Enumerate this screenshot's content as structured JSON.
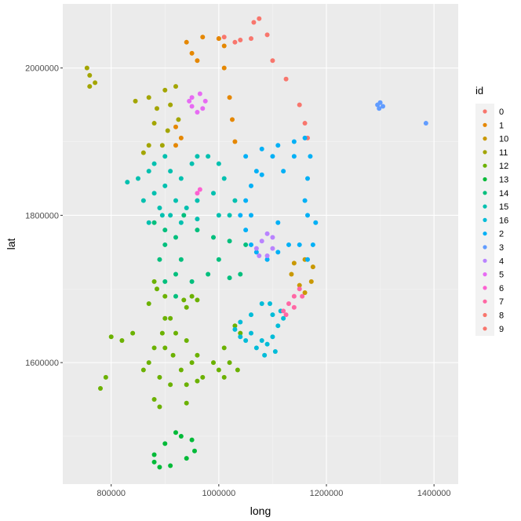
{
  "chart_data": {
    "type": "scatter",
    "xlabel": "long",
    "ylabel": "lat",
    "xlim": [
      710000,
      1445000
    ],
    "ylim": [
      1435000,
      2087000
    ],
    "x_ticks": [
      800000,
      1000000,
      1200000,
      1400000
    ],
    "x_tick_labels": [
      "800000",
      "1000000",
      "1200000",
      "1400000"
    ],
    "y_ticks": [
      1600000,
      1800000,
      2000000
    ],
    "y_tick_labels": [
      "1600000",
      "1800000",
      "2000000"
    ],
    "grid": true,
    "legend": {
      "title": "id",
      "position": "right",
      "entries": [
        {
          "label": "0",
          "color": "#F8766D"
        },
        {
          "label": "1",
          "color": "#E58700"
        },
        {
          "label": "10",
          "color": "#C99800"
        },
        {
          "label": "11",
          "color": "#A3A500"
        },
        {
          "label": "12",
          "color": "#6BB100"
        },
        {
          "label": "13",
          "color": "#00BA38"
        },
        {
          "label": "14",
          "color": "#00BF7D"
        },
        {
          "label": "15",
          "color": "#00C0AF"
        },
        {
          "label": "16",
          "color": "#00BCD8"
        },
        {
          "label": "2",
          "color": "#00B0F6"
        },
        {
          "label": "3",
          "color": "#619CFF"
        },
        {
          "label": "4",
          "color": "#B983FF"
        },
        {
          "label": "5",
          "color": "#E76BF3"
        },
        {
          "label": "6",
          "color": "#FD61D1"
        },
        {
          "label": "7",
          "color": "#FF67A4"
        },
        {
          "label": "8",
          "color": "#F8766D"
        },
        {
          "label": "9",
          "color": "#F8766D"
        }
      ]
    },
    "series": [
      {
        "id": "0",
        "color": "#F8766D",
        "points": [
          [
            1000000,
            2040000
          ],
          [
            1030000,
            2035000
          ],
          [
            1060000,
            2040000
          ],
          [
            1075000,
            2067000
          ],
          [
            1090000,
            2045000
          ],
          [
            1100000,
            2010000
          ],
          [
            1125000,
            1985000
          ],
          [
            1150000,
            1950000
          ],
          [
            1160000,
            1925000
          ],
          [
            1165000,
            1905000
          ],
          [
            1065000,
            2062000
          ],
          [
            1040000,
            2038000
          ],
          [
            1010000,
            2042000
          ]
        ]
      },
      {
        "id": "1",
        "color": "#E58700",
        "points": [
          [
            940000,
            2035000
          ],
          [
            970000,
            2042000
          ],
          [
            1000000,
            2040000
          ],
          [
            1010000,
            2000000
          ],
          [
            1020000,
            1960000
          ],
          [
            1025000,
            1930000
          ],
          [
            920000,
            1920000
          ],
          [
            930000,
            1905000
          ],
          [
            920000,
            1895000
          ],
          [
            960000,
            2010000
          ],
          [
            950000,
            2020000
          ],
          [
            1010000,
            2030000
          ],
          [
            1030000,
            1900000
          ]
        ]
      },
      {
        "id": "10",
        "color": "#C99800",
        "points": [
          [
            1140000,
            1735000
          ],
          [
            1160000,
            1740000
          ],
          [
            1175000,
            1730000
          ],
          [
            1172000,
            1710000
          ],
          [
            1160000,
            1695000
          ],
          [
            1150000,
            1705000
          ],
          [
            1135000,
            1720000
          ]
        ]
      },
      {
        "id": "11",
        "color": "#A3A500",
        "points": [
          [
            755000,
            2000000
          ],
          [
            760000,
            1990000
          ],
          [
            760000,
            1975000
          ],
          [
            770000,
            1980000
          ],
          [
            900000,
            1970000
          ],
          [
            920000,
            1975000
          ],
          [
            910000,
            1950000
          ],
          [
            925000,
            1930000
          ],
          [
            905000,
            1915000
          ],
          [
            880000,
            1925000
          ],
          [
            895000,
            1895000
          ],
          [
            860000,
            1885000
          ],
          [
            870000,
            1895000
          ],
          [
            845000,
            1955000
          ],
          [
            885000,
            1945000
          ],
          [
            870000,
            1960000
          ]
        ]
      },
      {
        "id": "12",
        "color": "#6BB100",
        "points": [
          [
            880000,
            1710000
          ],
          [
            900000,
            1690000
          ],
          [
            910000,
            1660000
          ],
          [
            895000,
            1640000
          ],
          [
            880000,
            1620000
          ],
          [
            870000,
            1600000
          ],
          [
            890000,
            1580000
          ],
          [
            910000,
            1570000
          ],
          [
            930000,
            1590000
          ],
          [
            950000,
            1600000
          ],
          [
            970000,
            1580000
          ],
          [
            990000,
            1600000
          ],
          [
            1010000,
            1620000
          ],
          [
            1030000,
            1650000
          ],
          [
            1040000,
            1640000
          ],
          [
            1020000,
            1600000
          ],
          [
            1000000,
            1590000
          ],
          [
            960000,
            1610000
          ],
          [
            940000,
            1630000
          ],
          [
            920000,
            1640000
          ],
          [
            900000,
            1620000
          ],
          [
            870000,
            1680000
          ],
          [
            885000,
            1700000
          ],
          [
            840000,
            1640000
          ],
          [
            820000,
            1630000
          ],
          [
            800000,
            1635000
          ],
          [
            790000,
            1580000
          ],
          [
            780000,
            1565000
          ],
          [
            860000,
            1590000
          ],
          [
            880000,
            1550000
          ],
          [
            890000,
            1540000
          ],
          [
            940000,
            1545000
          ],
          [
            960000,
            1575000
          ],
          [
            1010000,
            1580000
          ],
          [
            1035000,
            1590000
          ],
          [
            915000,
            1610000
          ],
          [
            940000,
            1570000
          ],
          [
            900000,
            1660000
          ],
          [
            950000,
            1690000
          ],
          [
            960000,
            1685000
          ],
          [
            940000,
            1675000
          ],
          [
            935000,
            1685000
          ]
        ]
      },
      {
        "id": "13",
        "color": "#00BA38",
        "points": [
          [
            880000,
            1465000
          ],
          [
            900000,
            1490000
          ],
          [
            930000,
            1500000
          ],
          [
            950000,
            1495000
          ],
          [
            955000,
            1480000
          ],
          [
            940000,
            1470000
          ],
          [
            910000,
            1460000
          ],
          [
            890000,
            1458000
          ],
          [
            880000,
            1475000
          ],
          [
            920000,
            1505000
          ]
        ]
      },
      {
        "id": "14",
        "color": "#00BF7D",
        "points": [
          [
            880000,
            1790000
          ],
          [
            900000,
            1780000
          ],
          [
            920000,
            1770000
          ],
          [
            930000,
            1740000
          ],
          [
            920000,
            1720000
          ],
          [
            900000,
            1710000
          ],
          [
            920000,
            1690000
          ],
          [
            950000,
            1710000
          ],
          [
            980000,
            1720000
          ],
          [
            1020000,
            1715000
          ],
          [
            1040000,
            1720000
          ],
          [
            1050000,
            1760000
          ],
          [
            1020000,
            1765000
          ],
          [
            990000,
            1770000
          ],
          [
            960000,
            1780000
          ],
          [
            935000,
            1800000
          ],
          [
            900000,
            1760000
          ],
          [
            890000,
            1740000
          ],
          [
            1000000,
            1740000
          ]
        ]
      },
      {
        "id": "15",
        "color": "#00C0AF",
        "points": [
          [
            880000,
            1870000
          ],
          [
            900000,
            1880000
          ],
          [
            910000,
            1860000
          ],
          [
            900000,
            1840000
          ],
          [
            880000,
            1830000
          ],
          [
            890000,
            1810000
          ],
          [
            910000,
            1800000
          ],
          [
            920000,
            1820000
          ],
          [
            930000,
            1850000
          ],
          [
            950000,
            1870000
          ],
          [
            960000,
            1880000
          ],
          [
            980000,
            1880000
          ],
          [
            1000000,
            1870000
          ],
          [
            1010000,
            1850000
          ],
          [
            990000,
            1830000
          ],
          [
            960000,
            1820000
          ],
          [
            940000,
            1810000
          ],
          [
            930000,
            1790000
          ],
          [
            960000,
            1795000
          ],
          [
            1000000,
            1800000
          ],
          [
            1020000,
            1800000
          ],
          [
            1030000,
            1820000
          ],
          [
            870000,
            1860000
          ],
          [
            860000,
            1820000
          ],
          [
            850000,
            1850000
          ],
          [
            830000,
            1845000
          ],
          [
            895000,
            1800000
          ],
          [
            870000,
            1790000
          ]
        ]
      },
      {
        "id": "16",
        "color": "#00BCD8",
        "points": [
          [
            1040000,
            1655000
          ],
          [
            1060000,
            1665000
          ],
          [
            1080000,
            1680000
          ],
          [
            1095000,
            1680000
          ],
          [
            1100000,
            1665000
          ],
          [
            1110000,
            1650000
          ],
          [
            1100000,
            1635000
          ],
          [
            1080000,
            1630000
          ],
          [
            1060000,
            1640000
          ],
          [
            1050000,
            1630000
          ],
          [
            1070000,
            1620000
          ],
          [
            1090000,
            1625000
          ],
          [
            1105000,
            1615000
          ],
          [
            1040000,
            1635000
          ],
          [
            1030000,
            1645000
          ],
          [
            1085000,
            1610000
          ],
          [
            1120000,
            1660000
          ],
          [
            1115000,
            1670000
          ]
        ]
      },
      {
        "id": "2",
        "color": "#00B0F6",
        "points": [
          [
            1050000,
            1880000
          ],
          [
            1080000,
            1890000
          ],
          [
            1110000,
            1895000
          ],
          [
            1140000,
            1900000
          ],
          [
            1160000,
            1905000
          ],
          [
            1170000,
            1880000
          ],
          [
            1165000,
            1850000
          ],
          [
            1160000,
            1820000
          ],
          [
            1165000,
            1800000
          ],
          [
            1180000,
            1790000
          ],
          [
            1175000,
            1760000
          ],
          [
            1165000,
            1740000
          ],
          [
            1150000,
            1760000
          ],
          [
            1130000,
            1760000
          ],
          [
            1110000,
            1750000
          ],
          [
            1090000,
            1740000
          ],
          [
            1070000,
            1750000
          ],
          [
            1060000,
            1760000
          ],
          [
            1050000,
            1780000
          ],
          [
            1040000,
            1800000
          ],
          [
            1050000,
            1820000
          ],
          [
            1060000,
            1840000
          ],
          [
            1070000,
            1860000
          ],
          [
            1080000,
            1855000
          ],
          [
            1100000,
            1880000
          ],
          [
            1120000,
            1860000
          ],
          [
            1140000,
            1880000
          ],
          [
            1060000,
            1800000
          ],
          [
            1110000,
            1790000
          ]
        ]
      },
      {
        "id": "3",
        "color": "#619CFF",
        "points": [
          [
            1295000,
            1950000
          ],
          [
            1300000,
            1953000
          ],
          [
            1305000,
            1948000
          ],
          [
            1298000,
            1945000
          ],
          [
            1385000,
            1925000
          ]
        ]
      },
      {
        "id": "4",
        "color": "#B983FF",
        "points": [
          [
            1080000,
            1765000
          ],
          [
            1090000,
            1775000
          ],
          [
            1100000,
            1770000
          ],
          [
            1100000,
            1755000
          ],
          [
            1090000,
            1745000
          ],
          [
            1075000,
            1745000
          ],
          [
            1070000,
            1755000
          ]
        ]
      },
      {
        "id": "5",
        "color": "#E76BF3",
        "points": [
          [
            950000,
            1960000
          ],
          [
            965000,
            1965000
          ],
          [
            975000,
            1955000
          ],
          [
            970000,
            1945000
          ],
          [
            960000,
            1940000
          ],
          [
            950000,
            1948000
          ],
          [
            945000,
            1955000
          ]
        ]
      },
      {
        "id": "6",
        "color": "#FD61D1",
        "points": [
          [
            960000,
            1830000
          ],
          [
            965000,
            1835000
          ]
        ]
      },
      {
        "id": "7",
        "color": "#FF67A4",
        "points": [
          [
            1120000,
            1670000
          ],
          [
            1130000,
            1680000
          ],
          [
            1140000,
            1690000
          ],
          [
            1150000,
            1700000
          ],
          [
            1155000,
            1690000
          ],
          [
            1140000,
            1675000
          ],
          [
            1125000,
            1665000
          ]
        ]
      },
      {
        "id": "8",
        "color": "#F8766D",
        "points": []
      },
      {
        "id": "9",
        "color": "#F8766D",
        "points": []
      }
    ]
  }
}
